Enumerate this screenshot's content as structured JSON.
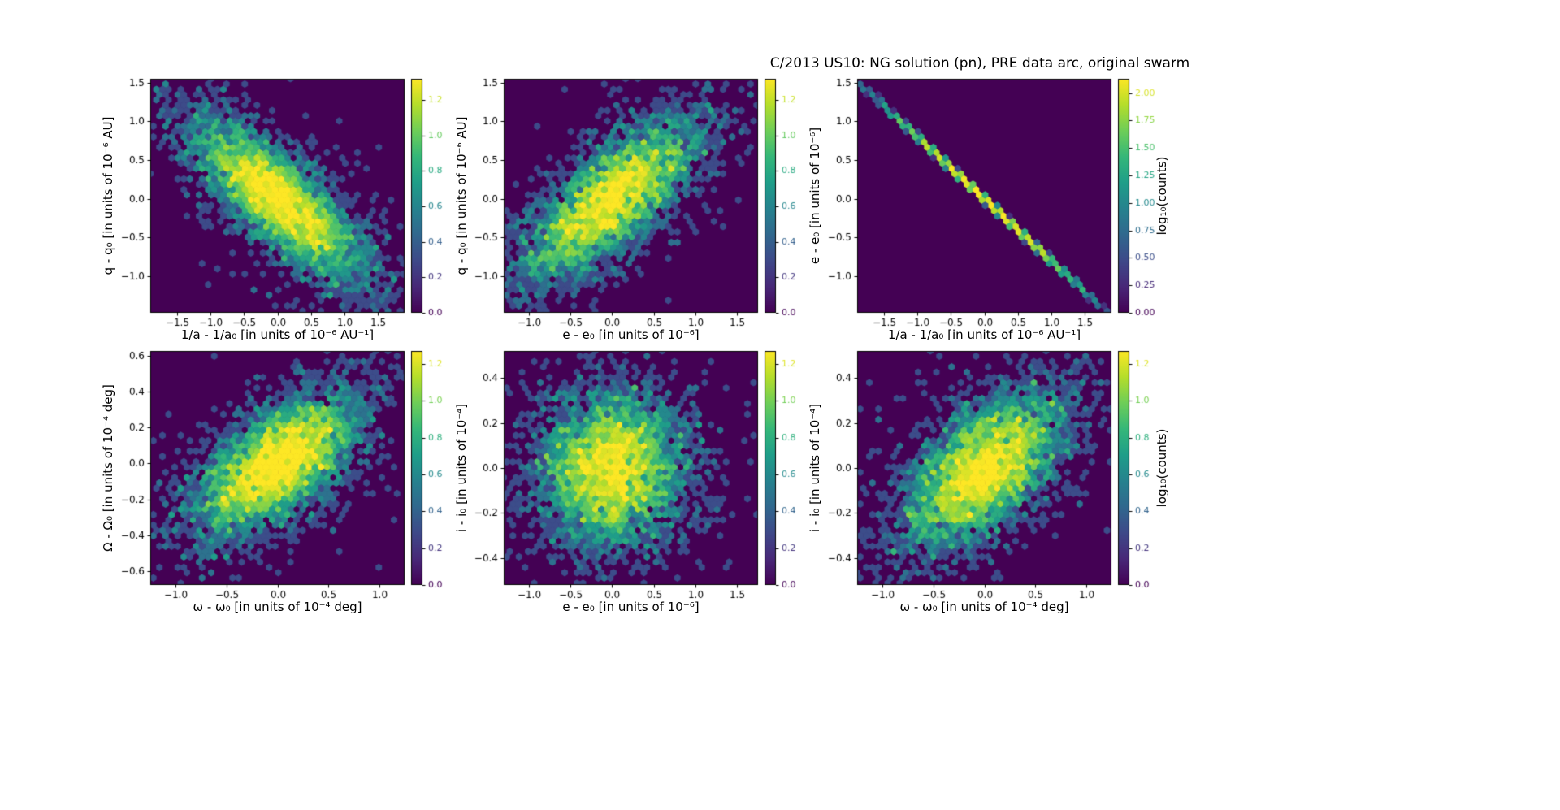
{
  "title": "C/2013 US10: NG solution (pn), PRE data arc, original swarm",
  "colors": {
    "background": "#ffffff",
    "text": "#000000",
    "frame": "#000000",
    "hex_zero": "#440154",
    "viridis": [
      "#440154",
      "#482878",
      "#3e4989",
      "#31688e",
      "#26828e",
      "#1f9e89",
      "#35b779",
      "#6ece58",
      "#b5de2b",
      "#fde725"
    ]
  },
  "chart_data": {
    "type": "heatmap",
    "subtype": "hexbin",
    "colormap": "viridis",
    "layout": {
      "rows": 2,
      "cols": 3,
      "grid": false
    },
    "panels": [
      {
        "id": "panel-q-vs-inv-a",
        "xlabel": "1/a - 1/a₀ [in units of 10⁻⁶ AU⁻¹]",
        "ylabel": "q - q₀ [in units of 10⁻⁶ AU]",
        "xlim": [
          -1.9,
          1.9
        ],
        "ylim": [
          -1.47,
          1.55
        ],
        "xtick_vals": [
          -1.5,
          -1.0,
          -0.5,
          0.0,
          0.5,
          1.0,
          1.5
        ],
        "xtick_labels": [
          "−1.5",
          "−1.0",
          "−0.5",
          "0.0",
          "0.5",
          "1.0",
          "1.5"
        ],
        "ytick_vals": [
          -1.0,
          -0.5,
          0.0,
          0.5,
          1.0,
          1.5
        ],
        "ytick_labels": [
          "−1.0",
          "−0.5",
          "0.0",
          "0.5",
          "1.0",
          "1.5"
        ],
        "colorbar": {
          "vmin": 0,
          "vmax": 1.32,
          "label": null,
          "tick_vals": [
            0.0,
            0.2,
            0.4,
            0.6,
            0.8,
            1.0,
            1.2
          ],
          "tick_labels": [
            "0.0",
            "0.2",
            "0.4",
            "0.6",
            "0.8",
            "1.0",
            "1.2"
          ]
        },
        "distribution": {
          "kind": "gaussian",
          "n": 5000,
          "center": [
            0,
            0
          ],
          "sigma_x": 0.62,
          "sigma_y": 0.5,
          "rho": -0.78,
          "outlier_frac": 0.12,
          "outlier_scale": 2.1
        }
      },
      {
        "id": "panel-q-vs-e",
        "xlabel": "e - e₀ [in units of 10⁻⁶]",
        "ylabel": "q - q₀ [in units of 10⁻⁶ AU]",
        "xlim": [
          -1.3,
          1.75
        ],
        "ylim": [
          -1.47,
          1.55
        ],
        "xtick_vals": [
          -1.0,
          -0.5,
          0.0,
          0.5,
          1.0,
          1.5
        ],
        "xtick_labels": [
          "−1.0",
          "−0.5",
          "0.0",
          "0.5",
          "1.0",
          "1.5"
        ],
        "ytick_vals": [
          -1.0,
          -0.5,
          0.0,
          0.5,
          1.0,
          1.5
        ],
        "ytick_labels": [
          "−1.0",
          "−0.5",
          "0.0",
          "0.5",
          "1.0",
          "1.5"
        ],
        "colorbar": {
          "vmin": 0,
          "vmax": 1.32,
          "label": null,
          "tick_vals": [
            0.0,
            0.2,
            0.4,
            0.6,
            0.8,
            1.0,
            1.2
          ],
          "tick_labels": [
            "0.0",
            "0.2",
            "0.4",
            "0.6",
            "0.8",
            "1.0",
            "1.2"
          ]
        },
        "distribution": {
          "kind": "gaussian",
          "n": 5000,
          "center": [
            0,
            0
          ],
          "sigma_x": 0.5,
          "sigma_y": 0.5,
          "rho": 0.75,
          "outlier_frac": 0.12,
          "outlier_scale": 2.1
        }
      },
      {
        "id": "panel-e-vs-inv-a",
        "xlabel": "1/a - 1/a₀ [in units of 10⁻⁶ AU⁻¹]",
        "ylabel": "e - e₀ [in units of 10⁻⁶]",
        "xlim": [
          -1.9,
          1.9
        ],
        "ylim": [
          -1.47,
          1.55
        ],
        "xtick_vals": [
          -1.5,
          -1.0,
          -0.5,
          0.0,
          0.5,
          1.0,
          1.5
        ],
        "xtick_labels": [
          "−1.5",
          "−1.0",
          "−0.5",
          "0.0",
          "0.5",
          "1.0",
          "1.5"
        ],
        "ytick_vals": [
          -1.0,
          -0.5,
          0.0,
          0.5,
          1.0,
          1.5
        ],
        "ytick_labels": [
          "−1.0",
          "−0.5",
          "0.0",
          "0.5",
          "1.0",
          "1.5"
        ],
        "colorbar": {
          "vmin": 0,
          "vmax": 2.13,
          "label": "log₁₀(counts)",
          "tick_vals": [
            0.0,
            0.25,
            0.5,
            0.75,
            1.0,
            1.25,
            1.5,
            1.75,
            2.0
          ],
          "tick_labels": [
            "0.00",
            "0.25",
            "0.50",
            "0.75",
            "1.00",
            "1.25",
            "1.50",
            "1.75",
            "2.00"
          ]
        },
        "distribution": {
          "kind": "line",
          "n": 3500,
          "center": [
            0,
            0
          ],
          "sigma_x": 0.72,
          "slope": -0.8,
          "noise": 0.008
        }
      },
      {
        "id": "panel-bigomega-vs-omega",
        "xlabel": "ω - ω₀ [in units of 10⁻⁴ deg]",
        "ylabel": "Ω - Ω₀ [in units of 10⁻⁴ deg]",
        "xlim": [
          -1.25,
          1.25
        ],
        "ylim": [
          -0.675,
          0.625
        ],
        "xtick_vals": [
          -1.0,
          -0.5,
          0.0,
          0.5,
          1.0
        ],
        "xtick_labels": [
          "−1.0",
          "−0.5",
          "0.0",
          "0.5",
          "1.0"
        ],
        "ytick_vals": [
          -0.6,
          -0.4,
          -0.2,
          0.0,
          0.2,
          0.4,
          0.6
        ],
        "ytick_labels": [
          "−0.6",
          "−0.4",
          "−0.2",
          "0.0",
          "0.2",
          "0.4",
          "0.6"
        ],
        "colorbar": {
          "vmin": 0,
          "vmax": 1.27,
          "label": null,
          "tick_vals": [
            0.0,
            0.2,
            0.4,
            0.6,
            0.8,
            1.0,
            1.2
          ],
          "tick_labels": [
            "0.0",
            "0.2",
            "0.4",
            "0.6",
            "0.8",
            "1.0",
            "1.2"
          ]
        },
        "distribution": {
          "kind": "gaussian",
          "n": 5000,
          "center": [
            0,
            0
          ],
          "sigma_x": 0.38,
          "sigma_y": 0.185,
          "rho": 0.6,
          "outlier_frac": 0.12,
          "outlier_scale": 2.0
        }
      },
      {
        "id": "panel-i-vs-e",
        "xlabel": "e - e₀ [in units of 10⁻⁶]",
        "ylabel": "i - i₀ [in units of 10⁻⁴]",
        "xlim": [
          -1.3,
          1.75
        ],
        "ylim": [
          -0.52,
          0.52
        ],
        "xtick_vals": [
          -1.0,
          -0.5,
          0.0,
          0.5,
          1.0,
          1.5
        ],
        "xtick_labels": [
          "−1.0",
          "−0.5",
          "0.0",
          "0.5",
          "1.0",
          "1.5"
        ],
        "ytick_vals": [
          -0.4,
          -0.2,
          0.0,
          0.2,
          0.4
        ],
        "ytick_labels": [
          "−0.4",
          "−0.2",
          "0.0",
          "0.2",
          "0.4"
        ],
        "colorbar": {
          "vmin": 0,
          "vmax": 1.27,
          "label": null,
          "tick_vals": [
            0.0,
            0.2,
            0.4,
            0.6,
            0.8,
            1.0,
            1.2
          ],
          "tick_labels": [
            "0.0",
            "0.2",
            "0.4",
            "0.6",
            "0.8",
            "1.0",
            "1.2"
          ]
        },
        "distribution": {
          "kind": "gaussian",
          "n": 5000,
          "center": [
            0,
            0
          ],
          "sigma_x": 0.42,
          "sigma_y": 0.16,
          "rho": 0.05,
          "outlier_frac": 0.12,
          "outlier_scale": 2.0
        }
      },
      {
        "id": "panel-i-vs-omega",
        "xlabel": "ω - ω₀ [in units of 10⁻⁴ deg]",
        "ylabel": "i - i₀ [in units of 10⁻⁴]",
        "xlim": [
          -1.25,
          1.25
        ],
        "ylim": [
          -0.52,
          0.52
        ],
        "xtick_vals": [
          -1.0,
          -0.5,
          0.0,
          0.5,
          1.0
        ],
        "xtick_labels": [
          "−1.0",
          "−0.5",
          "0.0",
          "0.5",
          "1.0"
        ],
        "ytick_vals": [
          -0.4,
          -0.2,
          0.0,
          0.2,
          0.4
        ],
        "ytick_labels": [
          "−0.4",
          "−0.2",
          "0.0",
          "0.2",
          "0.4"
        ],
        "colorbar": {
          "vmin": 0,
          "vmax": 1.27,
          "label": "log₁₀(counts)",
          "tick_vals": [
            0.0,
            0.2,
            0.4,
            0.6,
            0.8,
            1.0,
            1.2
          ],
          "tick_labels": [
            "0.0",
            "0.2",
            "0.4",
            "0.6",
            "0.8",
            "1.0",
            "1.2"
          ]
        },
        "distribution": {
          "kind": "gaussian",
          "n": 5000,
          "center": [
            0,
            0
          ],
          "sigma_x": 0.36,
          "sigma_y": 0.16,
          "rho": 0.55,
          "outlier_frac": 0.12,
          "outlier_scale": 2.0
        }
      }
    ]
  }
}
